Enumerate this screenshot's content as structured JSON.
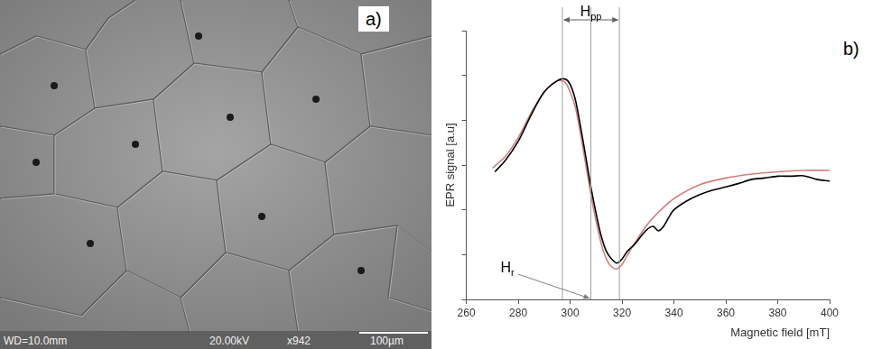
{
  "micrograph": {
    "label": "a)",
    "info_bar": [
      "WD=10.0mm",
      "20.00kV",
      "x942",
      "100µm"
    ]
  },
  "chart_data": {
    "type": "line",
    "label": "b)",
    "x_label": "Magnetic field [mT]",
    "y_label": "EPR signal [a.u]",
    "xlim": [
      260,
      400
    ],
    "xticks": [
      260,
      280,
      300,
      320,
      340,
      360,
      380,
      400
    ],
    "ylim": [
      0,
      6
    ],
    "yticks": [
      0,
      1,
      2,
      3,
      4,
      5,
      6
    ],
    "tick_labels": "x",
    "grid": false,
    "series": [
      {
        "color": "#000000",
        "x": [
          271,
          275,
          280,
          285,
          290,
          295,
          298,
          300,
          302,
          304,
          306,
          308,
          310,
          312,
          314,
          316,
          318,
          320,
          322,
          325,
          328,
          330,
          332,
          334,
          336,
          338,
          340,
          345,
          350,
          355,
          360,
          365,
          370,
          375,
          380,
          385,
          390,
          395,
          400
        ],
        "values": [
          2.85,
          3.1,
          3.53,
          4.12,
          4.63,
          4.88,
          4.92,
          4.8,
          4.46,
          3.86,
          3.19,
          2.51,
          1.92,
          1.41,
          1.07,
          0.9,
          0.81,
          0.9,
          1.07,
          1.24,
          1.46,
          1.58,
          1.63,
          1.53,
          1.63,
          1.83,
          2.0,
          2.2,
          2.34,
          2.44,
          2.51,
          2.59,
          2.68,
          2.71,
          2.75,
          2.75,
          2.76,
          2.68,
          2.64
        ]
      },
      {
        "color": "#d08080",
        "x": [
          270,
          275,
          280,
          285,
          290,
          295,
          298,
          300,
          302,
          304,
          306,
          308,
          310,
          312,
          314,
          316,
          318,
          320,
          322,
          325,
          330,
          335,
          340,
          350,
          360,
          370,
          380,
          390,
          400
        ],
        "values": [
          2.93,
          3.19,
          3.61,
          4.17,
          4.63,
          4.88,
          4.85,
          4.63,
          4.29,
          3.69,
          3.02,
          2.34,
          1.75,
          1.24,
          0.9,
          0.73,
          0.68,
          0.78,
          0.98,
          1.27,
          1.69,
          2.0,
          2.25,
          2.56,
          2.71,
          2.8,
          2.85,
          2.88,
          2.88
        ]
      }
    ],
    "annotations": [
      {
        "text": "Hpp",
        "x": [
          297,
          319
        ]
      },
      {
        "text": "Hr",
        "x": 308
      }
    ]
  }
}
